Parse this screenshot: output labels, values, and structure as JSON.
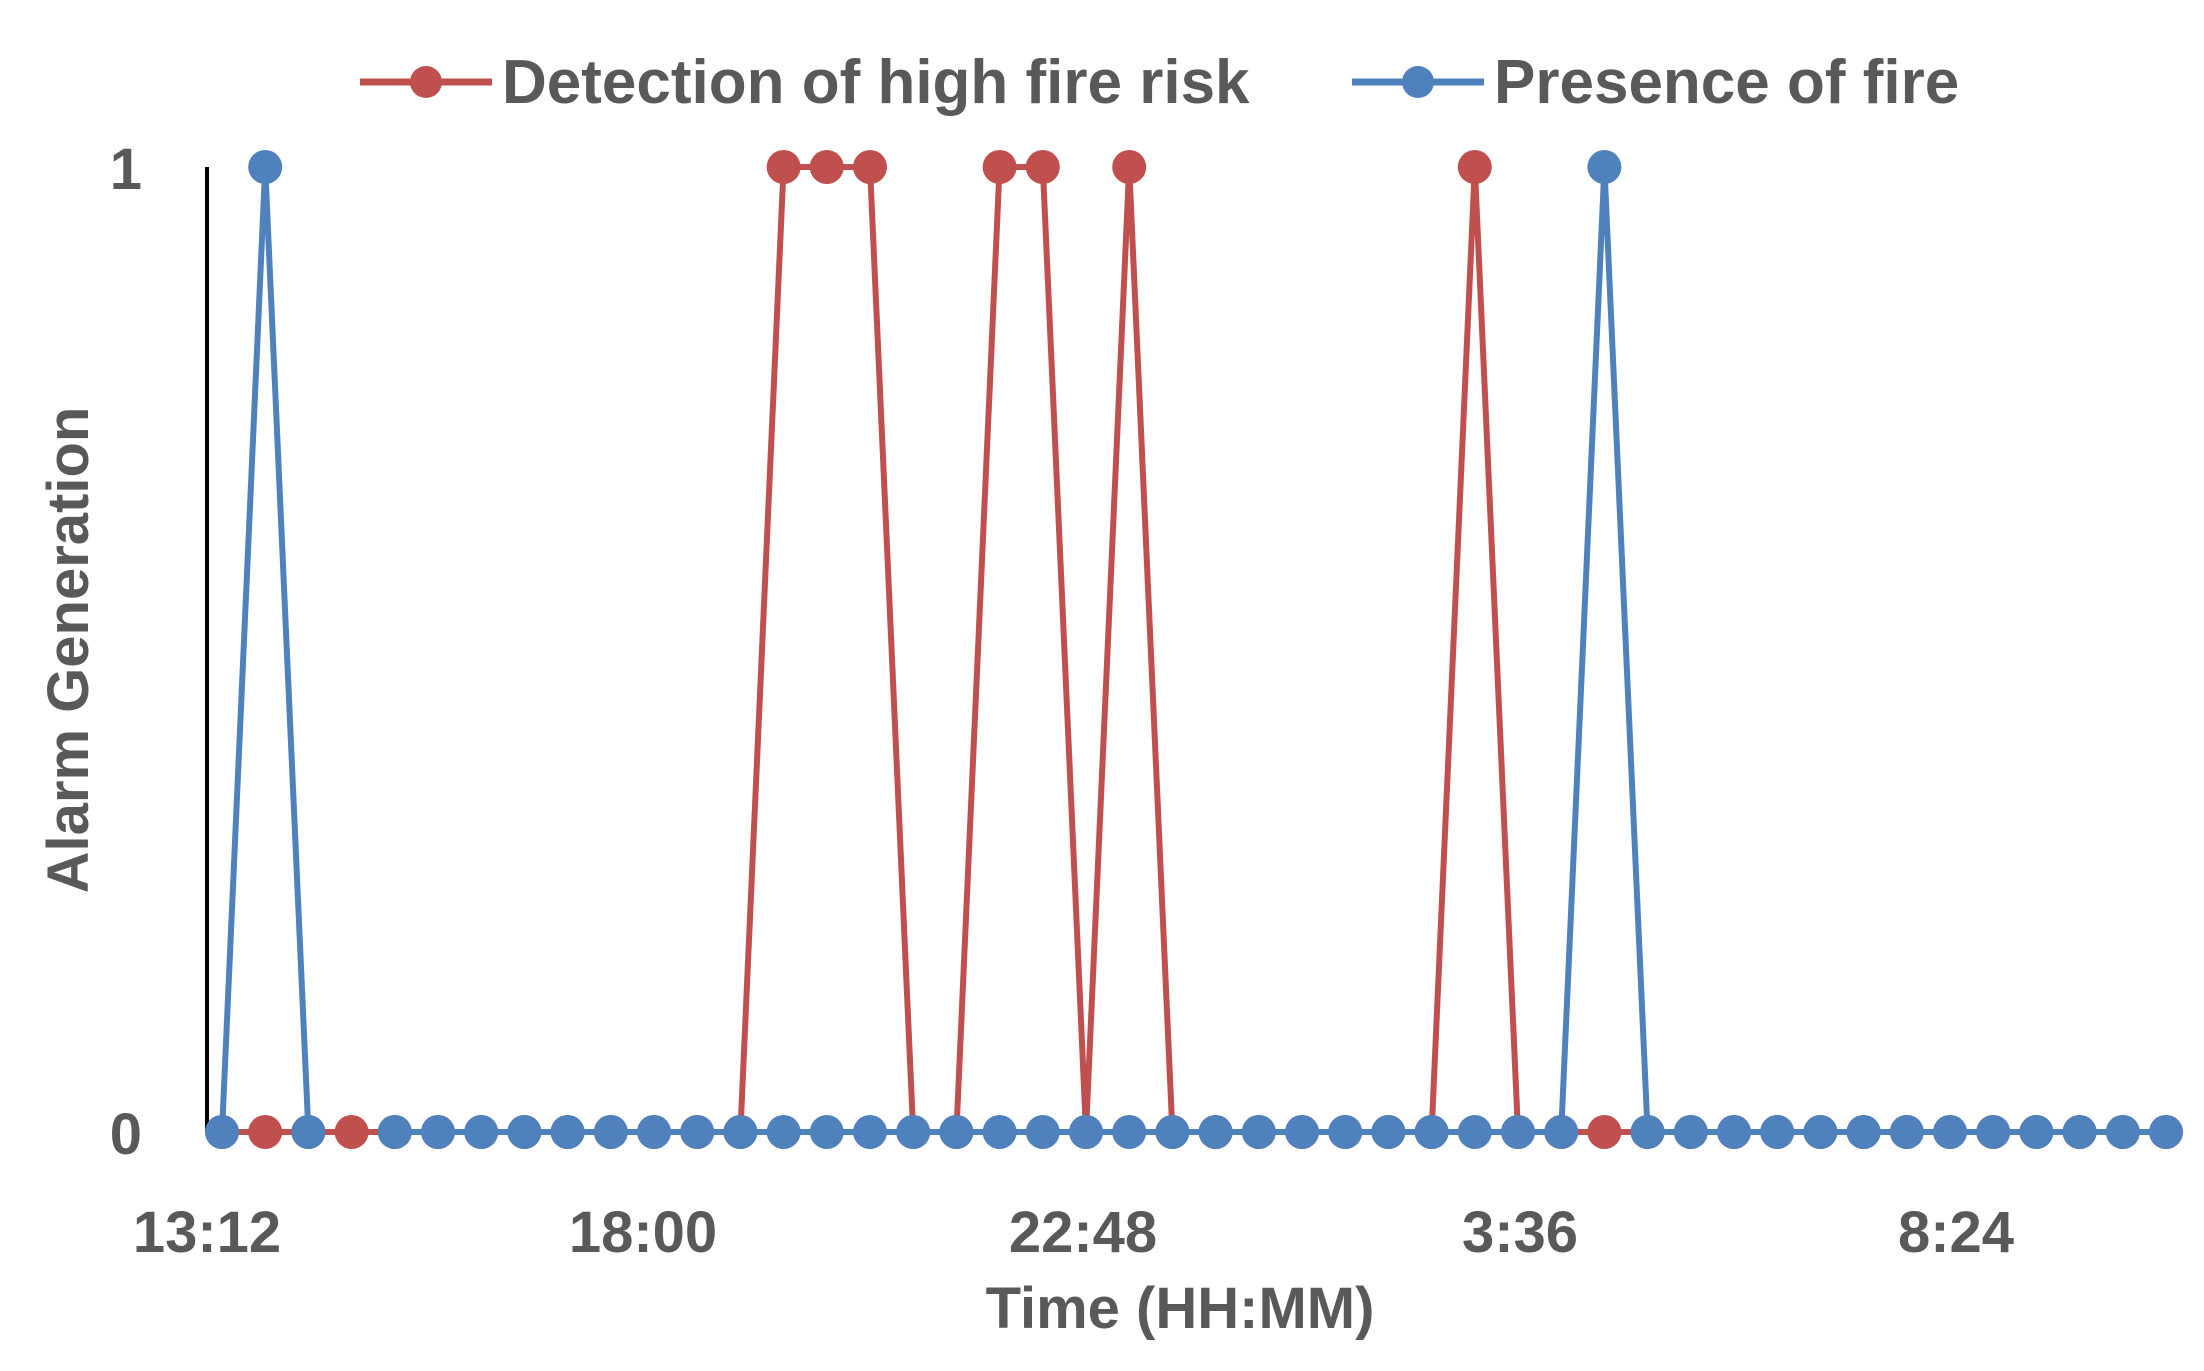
{
  "chart_data": {
    "type": "line",
    "title": "",
    "xlabel": "Time (HH:MM)",
    "ylabel": "Alarm Generation",
    "x_tick_labels": [
      "13:12",
      "18:00",
      "22:48",
      "3:36",
      "8:24"
    ],
    "y_tick_labels": [
      "0",
      "1"
    ],
    "ylim": [
      0,
      1
    ],
    "legend_position": "top",
    "grid": false,
    "series": [
      {
        "name": "Detection of high fire risk",
        "color": "#C0504D",
        "values": [
          0,
          0,
          0,
          0,
          0,
          0,
          0,
          0,
          0,
          0,
          0,
          0,
          0,
          1,
          1,
          1,
          0,
          0,
          1,
          1,
          0,
          1,
          0,
          0,
          0,
          0,
          0,
          0,
          0,
          1,
          0,
          0,
          0,
          0,
          0,
          0,
          0,
          0,
          0,
          0,
          0,
          0,
          0,
          0,
          0,
          0
        ]
      },
      {
        "name": "Presence of fire",
        "color": "#4F81BD",
        "values": [
          0,
          1,
          0,
          null,
          0,
          0,
          0,
          0,
          0,
          0,
          0,
          0,
          0,
          0,
          0,
          0,
          0,
          0,
          0,
          0,
          0,
          0,
          0,
          0,
          0,
          0,
          0,
          0,
          0,
          0,
          0,
          0,
          1,
          0,
          0,
          0,
          0,
          0,
          0,
          0,
          0,
          0,
          0,
          0,
          0,
          0
        ]
      }
    ]
  }
}
